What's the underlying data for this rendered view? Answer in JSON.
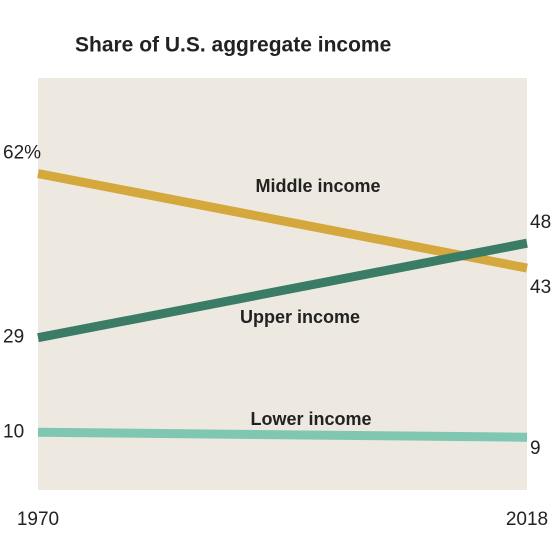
{
  "chart_data": {
    "type": "line",
    "title": "Share of U.S. aggregate income",
    "x": [
      1970,
      2018
    ],
    "xlim": [
      1970,
      2018
    ],
    "ylim": [
      0,
      80
    ],
    "series": [
      {
        "name": "Middle income",
        "color": "#d4a83c",
        "values": [
          62,
          43
        ],
        "value_labels": [
          "62%",
          "43"
        ]
      },
      {
        "name": "Upper income",
        "color": "#3b7c66",
        "values": [
          29,
          48
        ]
      },
      {
        "name": "Lower income",
        "color": "#80c7b1",
        "values": [
          10,
          9
        ]
      }
    ]
  }
}
